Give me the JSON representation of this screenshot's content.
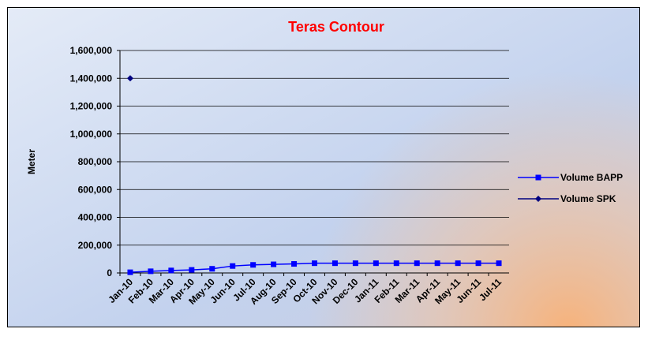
{
  "chart_data": {
    "type": "line",
    "title": "Teras Contour",
    "y_label": "Meter",
    "categories": [
      "Jan-10",
      "Feb-10",
      "Mar-10",
      "Apr-10",
      "May-10",
      "Jun-10",
      "Jul-10",
      "Aug-10",
      "Sep-10",
      "Oct-10",
      "Nov-10",
      "Dec-10",
      "Jan-11",
      "Feb-11",
      "Mar-11",
      "Apr-11",
      "May-11",
      "Jun-11",
      "Jul-11"
    ],
    "series": [
      {
        "name": "Volume BAPP",
        "color": "#0000ff",
        "marker": "square",
        "values": [
          5000,
          12000,
          18000,
          22000,
          30000,
          50000,
          58000,
          62000,
          65000,
          70000,
          70000,
          70000,
          70000,
          70000,
          70000,
          70000,
          70000,
          70000,
          70000
        ]
      },
      {
        "name": "Volume SPK",
        "color": "#000080",
        "marker": "diamond",
        "values": [
          1400000,
          null,
          null,
          null,
          null,
          null,
          null,
          null,
          null,
          null,
          null,
          null,
          null,
          null,
          null,
          null,
          null,
          null,
          null
        ]
      }
    ],
    "ylim": [
      0,
      1600000
    ],
    "yticks": [
      0,
      {
        "value": 200000,
        "label": "200,000"
      },
      {
        "value": 400000,
        "label": "400,000"
      },
      {
        "value": 600000,
        "label": "600,000"
      },
      {
        "value": 800000,
        "label": "800,000"
      },
      {
        "value": 1000000,
        "label": "1,000,000"
      },
      {
        "value": 1200000,
        "label": "1,200,000"
      },
      {
        "value": 1400000,
        "label": "1,400,000"
      },
      {
        "value": 1600000,
        "label": "1,600,000"
      }
    ],
    "grid": true,
    "title_color": "#ff0000"
  }
}
